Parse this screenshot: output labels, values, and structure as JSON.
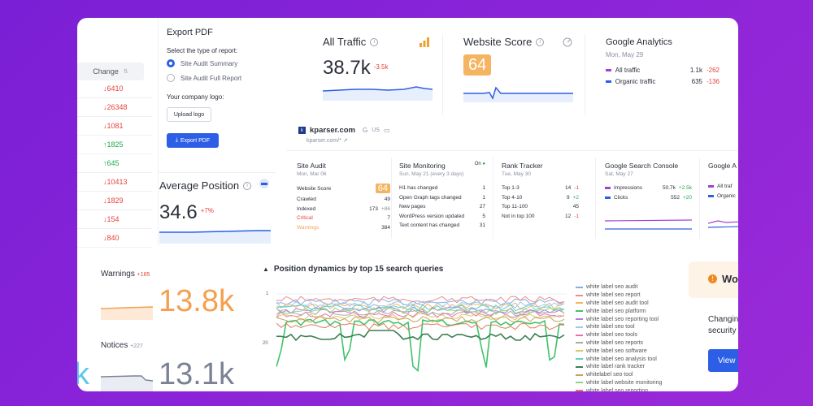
{
  "change_column": {
    "header": "Change",
    "rows": [
      {
        "dir": "down",
        "value": "6410"
      },
      {
        "dir": "down",
        "value": "26348"
      },
      {
        "dir": "down",
        "value": "1081"
      },
      {
        "dir": "up",
        "value": "1825"
      },
      {
        "dir": "up",
        "value": "645"
      },
      {
        "dir": "down",
        "value": "10413"
      },
      {
        "dir": "down",
        "value": "1829"
      },
      {
        "dir": "down",
        "value": "154"
      },
      {
        "dir": "down",
        "value": "840"
      }
    ]
  },
  "export_pdf": {
    "title": "Export PDF",
    "select_label": "Select the type of report:",
    "options": [
      "Site Audit Summary",
      "Site Audit Full Report"
    ],
    "logo_label": "Your company logo:",
    "upload_label": "Upload logo",
    "export_label": "Export PDF"
  },
  "all_traffic": {
    "title": "All Traffic",
    "value": "38.7k",
    "delta": "-3.5k"
  },
  "website_score": {
    "title": "Website Score",
    "value": "64"
  },
  "google_analytics": {
    "title": "Google Analytics",
    "date": "Mon, May 29",
    "rows": [
      {
        "label": "All traffic",
        "value": "1.1k",
        "delta": "-262",
        "color": "#a43fd8"
      },
      {
        "label": "Organic traffic",
        "value": "635",
        "delta": "-136",
        "color": "#2d5fe6"
      }
    ]
  },
  "site": {
    "name": "kparser.com",
    "google": "G",
    "region": "US",
    "url": "kparser.com/*"
  },
  "average_position": {
    "title": "Average Position",
    "value": "34.6",
    "delta": "+7%"
  },
  "site_audit": {
    "title": "Site Audit",
    "date": "Mon, Mar 06",
    "score_label": "Website Score",
    "score": "64",
    "rows": [
      {
        "label": "Crawled",
        "value": "49",
        "extra": ""
      },
      {
        "label": "Indexed",
        "value": "173",
        "extra": "+86"
      },
      {
        "label": "Critical",
        "value": "7",
        "extra": ""
      },
      {
        "label": "Warnings",
        "value": "384",
        "extra": ""
      }
    ]
  },
  "site_monitoring": {
    "title": "Site Monitoring",
    "status": "On",
    "date": "Sun, May 21 (every 3 days)",
    "rows": [
      {
        "label": "H1 has changed",
        "value": "1"
      },
      {
        "label": "Open Graph tags changed",
        "value": "1"
      },
      {
        "label": "New pages",
        "value": "27"
      },
      {
        "label": "WordPress version updated",
        "value": "5"
      },
      {
        "label": "Text content has changed",
        "value": "31"
      }
    ]
  },
  "rank_tracker": {
    "title": "Rank Tracker",
    "date": "Tue, May 30",
    "rows": [
      {
        "label": "Top 1-3",
        "value": "14",
        "extra": "-1"
      },
      {
        "label": "Top 4-10",
        "value": "9",
        "extra": "+2"
      },
      {
        "label": "Top 11-100",
        "value": "45",
        "extra": ""
      },
      {
        "label": "Not in top 100",
        "value": "12",
        "extra": "-1"
      }
    ]
  },
  "search_console": {
    "title": "Google Search Console",
    "date": "Sat, May 27",
    "rows": [
      {
        "label": "Impressions",
        "value": "50.7k",
        "extra": "+2.5k",
        "color": "#a43fd8"
      },
      {
        "label": "Clicks",
        "value": "552",
        "extra": "+20",
        "color": "#2d5fe6"
      }
    ]
  },
  "google_a_partial": {
    "title": "Google A",
    "rows": [
      {
        "label": "All traf"
      },
      {
        "label": "Organic"
      }
    ]
  },
  "warnings": {
    "title": "Warnings",
    "delta": "+185",
    "value": "13.8k"
  },
  "notices": {
    "title": "Notices",
    "delta": "+227",
    "value": "13.1k"
  },
  "left_partial_k": "k",
  "position_dynamics": {
    "title": "Position dynamics by top 15 search queries",
    "y_ticks": [
      "1",
      "20"
    ],
    "legend": [
      {
        "name": "white label seo audit",
        "color": "#7fb0e8"
      },
      {
        "name": "white label seo report",
        "color": "#f08a8a"
      },
      {
        "name": "white label seo audit tool",
        "color": "#f5b461"
      },
      {
        "name": "white label seo platform",
        "color": "#3fc36a"
      },
      {
        "name": "white label seo reporting tool",
        "color": "#b57be0"
      },
      {
        "name": "white label seo tool",
        "color": "#9cc8f0"
      },
      {
        "name": "white label seo tools",
        "color": "#e86fb3"
      },
      {
        "name": "white label seo reports",
        "color": "#a8a8a8"
      },
      {
        "name": "white label seo software",
        "color": "#d9c86a"
      },
      {
        "name": "white label seo analysis tool",
        "color": "#5fd0c0"
      },
      {
        "name": "white label rank tracker",
        "color": "#3a7f52"
      },
      {
        "name": "whitelabel seo tool",
        "color": "#c4a35a"
      },
      {
        "name": "white label website monitoring",
        "color": "#8fd18a"
      },
      {
        "name": "white label seo reporting",
        "color": "#e07a5a"
      }
    ]
  },
  "promo": {
    "title_partial": "Wo",
    "text_line1": "Changin",
    "text_line2": "security",
    "button": "View"
  }
}
